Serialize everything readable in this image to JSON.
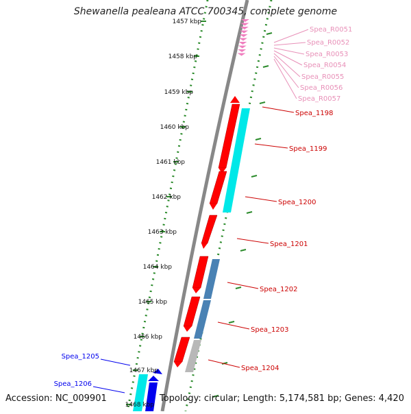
{
  "title": "Shewanella pealeana ATCC 700345, complete genome",
  "accession": "Accession: NC_009901",
  "topology": "Topology: circular; Length: 5,174,581 bp; Genes: 4,420",
  "scale_labels": [
    "1457 kbp",
    "1458 kbp",
    "1459 kbp",
    "1460 kbp",
    "1461 kbp",
    "1462 kbp",
    "1463 kbp",
    "1464 kbp",
    "1465 kbp",
    "1466 kbp",
    "1467 kbp",
    "1468 kbp"
  ],
  "rna_labels": [
    "Spea_R0051",
    "Spea_R0052",
    "Spea_R0053",
    "Spea_R0054",
    "Spea_R0055",
    "Spea_R0056",
    "Spea_R0057"
  ],
  "gene_labels_right": [
    "Spea_1198",
    "Spea_1199",
    "Spea_1200",
    "Spea_1201",
    "Spea_1202",
    "Spea_1203",
    "Spea_1204"
  ],
  "gene_labels_left": [
    "Spea_1205",
    "Spea_1206"
  ],
  "colors": {
    "rna_pink": "#f080c0",
    "rna_label": "#e890b8",
    "gene_red": "#ff0000",
    "gene_label_red": "#cc0000",
    "gene_blue": "#0000ee",
    "cyan": "#00e8e8",
    "steel": "#4a82b4",
    "grey": "#b8b8b8",
    "dots": "#2a8a2a",
    "backbone": "#888888"
  }
}
